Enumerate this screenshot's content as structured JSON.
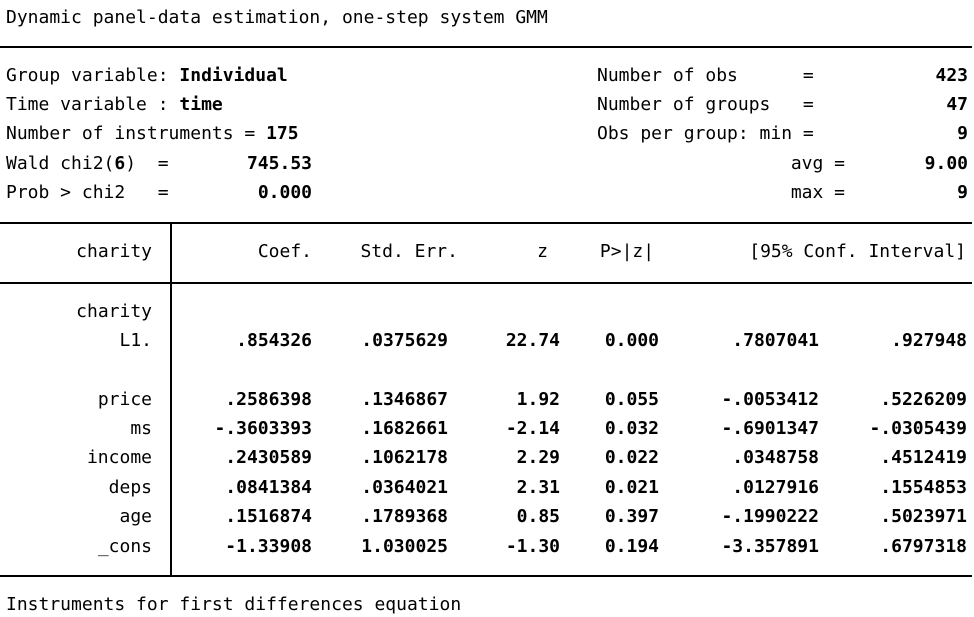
{
  "title": "Dynamic panel-data estimation, one-step system GMM",
  "header_left": {
    "group_label": "Group variable: ",
    "group_value": "Individual",
    "time_label": "Time variable : ",
    "time_value": "time",
    "instr_label": "Number of instruments = ",
    "instr_value": "175",
    "wald_label_pre": "Wald chi2(",
    "wald_df": "6",
    "wald_label_post": ")  =",
    "wald_value": "745.53",
    "prob_label": "Prob > chi2   =",
    "prob_value": "0.000"
  },
  "header_right": {
    "nobs_label": "Number of obs      =",
    "nobs_value": "423",
    "ngroups_label": "Number of groups   =",
    "ngroups_value": "47",
    "min_label": "Obs per group: min =",
    "min_value": "9",
    "avg_label": "avg =",
    "avg_value": "9.00",
    "max_label": "max =",
    "max_value": "9"
  },
  "table": {
    "dep_var": "charity",
    "columns": [
      "Coef.",
      "Std. Err.",
      "z",
      "P>|z|",
      "[95% Conf. Interval]"
    ],
    "group_label": "charity",
    "rows": [
      {
        "name": "L1.",
        "coef": ".854326",
        "se": ".0375629",
        "z": "22.74",
        "p": "0.000",
        "lo": ".7807041",
        "hi": ".927948"
      },
      {
        "name": "price",
        "coef": ".2586398",
        "se": ".1346867",
        "z": "1.92",
        "p": "0.055",
        "lo": "-.0053412",
        "hi": ".5226209"
      },
      {
        "name": "ms",
        "coef": "-.3603393",
        "se": ".1682661",
        "z": "-2.14",
        "p": "0.032",
        "lo": "-.6901347",
        "hi": "-.0305439"
      },
      {
        "name": "income",
        "coef": ".2430589",
        "se": ".1062178",
        "z": "2.29",
        "p": "0.022",
        "lo": ".0348758",
        "hi": ".4512419"
      },
      {
        "name": "deps",
        "coef": ".0841384",
        "se": ".0364021",
        "z": "2.31",
        "p": "0.021",
        "lo": ".0127916",
        "hi": ".1554853"
      },
      {
        "name": "age",
        "coef": ".1516874",
        "se": ".1789368",
        "z": "0.85",
        "p": "0.397",
        "lo": "-.1990222",
        "hi": ".5023971"
      },
      {
        "name": "_cons",
        "coef": "-1.33908",
        "se": "1.030025",
        "z": "-1.30",
        "p": "0.194",
        "lo": "-3.357891",
        "hi": ".6797318"
      }
    ]
  },
  "footer": "Instruments for first differences equation"
}
